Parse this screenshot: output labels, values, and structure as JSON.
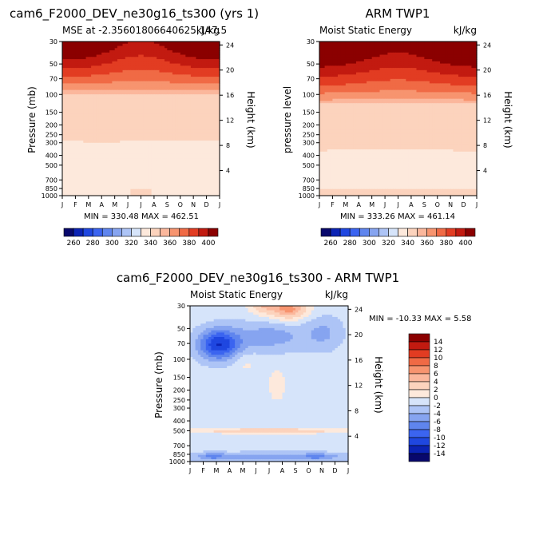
{
  "chart_data": [
    {
      "type": "heatmap",
      "title": "cam6_F2000_DEV_ne30g16_ts300 (yrs 1)",
      "subtitle_left": "MSE at -2.35601806640625,147.5",
      "subtitle_right": "kJ/kg",
      "ylabel": "Pressure (mb)",
      "ylabel_right": "Height (km)",
      "x_ticks": [
        "J",
        "F",
        "M",
        "A",
        "M",
        "J",
        "J",
        "A",
        "S",
        "O",
        "N",
        "D",
        "J"
      ],
      "y_ticks": [
        "30",
        "50",
        "70",
        "100",
        "150",
        "200",
        "250",
        "300",
        "400",
        "500",
        "700",
        "850",
        "1000"
      ],
      "y_right_ticks": [
        "24",
        "20",
        "16",
        "12",
        "8",
        "4"
      ],
      "stats": "MIN = 330.48 MAX = 462.51",
      "contour_levels": [
        260,
        270,
        280,
        290,
        300,
        310,
        320,
        330,
        340,
        350,
        360,
        370,
        380,
        390,
        400
      ],
      "approx_boundaries_mb": {
        "340": 270,
        "350": 100,
        "360": 72,
        "370": 64,
        "380": 57,
        "390": 52,
        "400": 47
      }
    },
    {
      "type": "heatmap",
      "title": "ARM TWP1",
      "subtitle_left": "Moist Static Energy",
      "subtitle_right": "kJ/kg",
      "ylabel": "pressure level",
      "ylabel_right": "Height (km)",
      "x_ticks": [
        "J",
        "F",
        "M",
        "A",
        "M",
        "J",
        "J",
        "A",
        "S",
        "O",
        "N",
        "D",
        "J"
      ],
      "y_ticks": [
        "30",
        "50",
        "70",
        "100",
        "150",
        "200",
        "250",
        "300",
        "400",
        "500",
        "700",
        "850",
        "1000"
      ],
      "y_right_ticks": [
        "24",
        "20",
        "16",
        "12",
        "8",
        "4"
      ],
      "stats": "MIN = 333.26 MAX = 461.14",
      "contour_levels": [
        260,
        270,
        280,
        290,
        300,
        310,
        320,
        330,
        340,
        350,
        360,
        370,
        380,
        390,
        400
      ],
      "approx_boundaries_mb": {
        "340": 350,
        "350": 125,
        "360": 82,
        "370": 70,
        "380": 60,
        "390": 54,
        "400": 49
      }
    },
    {
      "type": "heatmap",
      "title": "cam6_F2000_DEV_ne30g16_ts300 - ARM TWP1",
      "subtitle_left": "Moist Static Energy",
      "subtitle_right": "kJ/kg",
      "ylabel": "Pressure (mb)",
      "ylabel_right": "Height (km)",
      "x_ticks": [
        "J",
        "F",
        "M",
        "A",
        "M",
        "J",
        "J",
        "A",
        "S",
        "O",
        "N",
        "D",
        "J"
      ],
      "y_ticks": [
        "30",
        "50",
        "70",
        "100",
        "150",
        "200",
        "250",
        "300",
        "400",
        "500",
        "700",
        "850",
        "1000"
      ],
      "y_right_ticks": [
        "24",
        "20",
        "16",
        "12",
        "8",
        "4"
      ],
      "stats": "MIN = -10.33 MAX =   5.58",
      "contour_levels": [
        -14,
        -12,
        -10,
        -8,
        -6,
        -4,
        -2,
        0,
        2,
        4,
        6,
        8,
        10,
        12,
        14
      ]
    }
  ],
  "colorbar_top": {
    "labels": [
      "260",
      "280",
      "300",
      "320",
      "340",
      "360",
      "380",
      "400"
    ],
    "colors": [
      "#08086c",
      "#0b23b4",
      "#1f47e0",
      "#3b64f0",
      "#5f85ee",
      "#86a4f0",
      "#adc4f6",
      "#d6e4fa",
      "#fde9dc",
      "#fcd3bd",
      "#fbb79c",
      "#f7946f",
      "#f06a45",
      "#e23c22",
      "#c21a10",
      "#8b0000"
    ]
  },
  "colorbar_diff": {
    "labels": [
      "14",
      "12",
      "10",
      "8",
      "6",
      "4",
      "2",
      "0",
      "-2",
      "-4",
      "-6",
      "-8",
      "-10",
      "-12",
      "-14"
    ],
    "colors": [
      "#8b0000",
      "#c21a10",
      "#e23c22",
      "#f06a45",
      "#f7946f",
      "#fbb79c",
      "#fcd3bd",
      "#fde9dc",
      "#d6e4fa",
      "#adc4f6",
      "#86a4f0",
      "#5f85ee",
      "#3b64f0",
      "#1f47e0",
      "#0b23b4",
      "#08086c"
    ]
  }
}
